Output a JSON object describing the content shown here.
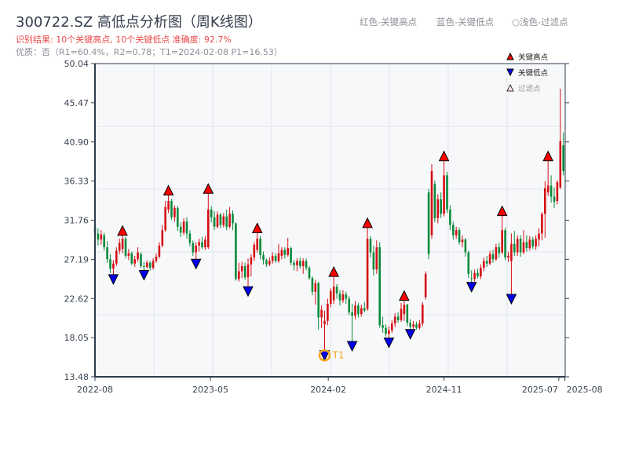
{
  "header": {
    "title": "300722.SZ 高低点分析图（周K线图）",
    "result": "识别结果: 10个关键高点, 10个关键低点   准确度: 92.7%",
    "quality": "优质：否（R1=60.4%，R2=0.78；T1=2024-02-08 P1=16.53）"
  },
  "top_legend": [
    "红色-关键高点",
    "蓝色-关键低点",
    "○浅色-过滤点"
  ],
  "colors": {
    "up": "#d40f14",
    "down": "#0a8a3a",
    "high_marker": "#ff0000",
    "low_marker": "#0000ee",
    "t1": "#f5a623",
    "plot_bg": "#f7f8fa",
    "grid": "#e1e4ea",
    "axis": "#2f3d4f"
  },
  "chart_data": {
    "type": "candlestick",
    "ylim": [
      13.48,
      50.04
    ],
    "y_ticks": [
      "13.48",
      "18.05",
      "22.62",
      "27.19",
      "31.76",
      "36.33",
      "40.90",
      "45.47",
      "50.04"
    ],
    "x_ticks": [
      {
        "label": "2022-08",
        "i": 0
      },
      {
        "label": "2023-05",
        "i": 37.7
      },
      {
        "label": "2024-02",
        "i": 76.2
      },
      {
        "label": "2024-11",
        "i": 114
      },
      {
        "label": "2025-07",
        "i": 151.5
      },
      {
        "label": "2025-08",
        "i": 153.5
      }
    ],
    "legend": [
      {
        "label": "关键高点",
        "marker": "red-up-triangle"
      },
      {
        "label": "关键低点",
        "marker": "blue-down-triangle"
      },
      {
        "label": "过滤点",
        "marker": "hollow-up-triangle"
      }
    ],
    "candle_format": [
      "open",
      "close",
      "high",
      "low"
    ],
    "candles": [
      [
        31,
        30.2,
        33.4,
        29.8
      ],
      [
        30.2,
        29.5,
        30.8,
        28.8
      ],
      [
        29.5,
        30.1,
        30.6,
        28.9
      ],
      [
        30,
        28.6,
        30.3,
        28.2
      ],
      [
        28.6,
        27.2,
        29.3,
        26.8
      ],
      [
        27.2,
        26.1,
        27.8,
        25.6
      ],
      [
        26.1,
        26.7,
        27.1,
        25.4
      ],
      [
        26.7,
        28.2,
        28.6,
        26.4
      ],
      [
        28.2,
        29.1,
        29.6,
        27.8
      ],
      [
        28.4,
        29.6,
        30.0,
        27.9
      ],
      [
        29.6,
        27.6,
        29.8,
        27.3
      ],
      [
        27.6,
        27.9,
        28.4,
        27.1
      ],
      [
        27.9,
        26.7,
        28.1,
        26.5
      ],
      [
        26.7,
        27.2,
        27.6,
        26.3
      ],
      [
        27.2,
        28.0,
        28.6,
        26.9
      ],
      [
        27.8,
        26.4,
        28.0,
        26.2
      ],
      [
        26.4,
        26.3,
        26.9,
        25.9
      ],
      [
        26.3,
        26.8,
        27.1,
        26.1
      ],
      [
        26.8,
        26.2,
        27.0,
        25.9
      ],
      [
        26.2,
        27.0,
        27.3,
        26.0
      ],
      [
        27.0,
        27.5,
        27.9,
        26.8
      ],
      [
        27.5,
        28.8,
        29.2,
        27.3
      ],
      [
        28.8,
        30.6,
        31.2,
        28.6
      ],
      [
        30.6,
        33.3,
        34.0,
        30.4
      ],
      [
        33.0,
        34.0,
        34.7,
        32.6
      ],
      [
        34.0,
        32.1,
        34.2,
        31.8
      ],
      [
        32.1,
        33.2,
        33.5,
        31.6
      ],
      [
        33.2,
        31.0,
        33.4,
        30.5
      ],
      [
        31.0,
        30.3,
        31.5,
        29.8
      ],
      [
        30.3,
        31.6,
        32.0,
        30.0
      ],
      [
        31.6,
        30.2,
        32.1,
        29.6
      ],
      [
        30.2,
        29.1,
        30.6,
        28.7
      ],
      [
        29.1,
        28.0,
        29.4,
        27.6
      ],
      [
        28.0,
        28.8,
        29.2,
        27.2
      ],
      [
        28.8,
        29.2,
        29.6,
        28.1
      ],
      [
        29.2,
        28.6,
        29.8,
        28.4
      ],
      [
        28.6,
        29.5,
        29.9,
        28.3
      ],
      [
        28.6,
        33.0,
        34.9,
        28.4
      ],
      [
        33.0,
        32.1,
        33.4,
        31.5
      ],
      [
        32.1,
        31.0,
        32.8,
        30.6
      ],
      [
        31.0,
        32.4,
        32.8,
        30.8
      ],
      [
        32.4,
        31.2,
        32.6,
        30.8
      ],
      [
        31.2,
        32.2,
        32.6,
        30.9
      ],
      [
        32.2,
        31.0,
        33.0,
        30.6
      ],
      [
        31.0,
        32.5,
        33.3,
        30.8
      ],
      [
        32.5,
        31.4,
        32.9,
        30.6
      ],
      [
        31.4,
        24.9,
        31.5,
        24.7
      ],
      [
        24.9,
        25.8,
        26.8,
        24.6
      ],
      [
        25.8,
        26.4,
        26.9,
        25.0
      ],
      [
        26.4,
        25.1,
        26.8,
        24.8
      ],
      [
        25.1,
        26.6,
        27.3,
        24.0
      ],
      [
        26.6,
        27.4,
        27.8,
        25.2
      ],
      [
        27.4,
        28.9,
        29.2,
        27.0
      ],
      [
        28.3,
        29.6,
        30.3,
        28.0
      ],
      [
        29.6,
        27.7,
        29.9,
        27.2
      ],
      [
        27.7,
        27.1,
        28.1,
        26.6
      ],
      [
        27.1,
        26.6,
        27.3,
        26.3
      ],
      [
        26.6,
        27.0,
        27.4,
        26.4
      ],
      [
        27.0,
        27.6,
        28.0,
        26.7
      ],
      [
        27.6,
        27.0,
        27.9,
        26.8
      ],
      [
        27.0,
        27.9,
        29.0,
        26.8
      ],
      [
        27.6,
        28.3,
        28.6,
        27.2
      ],
      [
        28.3,
        27.7,
        28.6,
        27.3
      ],
      [
        27.7,
        28.5,
        29.7,
        27.5
      ],
      [
        28.5,
        26.8,
        28.7,
        26.5
      ],
      [
        26.8,
        26.5,
        27.1,
        25.9
      ],
      [
        26.5,
        27.0,
        27.3,
        25.8
      ],
      [
        27.0,
        26.4,
        27.4,
        26.1
      ],
      [
        26.4,
        27.0,
        27.3,
        25.5
      ],
      [
        27.0,
        26.2,
        27.3,
        25.9
      ],
      [
        26.2,
        25.0,
        26.4,
        24.8
      ],
      [
        25.0,
        23.4,
        25.2,
        23.0
      ],
      [
        23.4,
        24.4,
        24.8,
        21.9
      ],
      [
        24.4,
        20.4,
        24.6,
        19.0
      ],
      [
        20.4,
        21.3,
        21.8,
        19.2
      ],
      [
        19.6,
        20.0,
        21.2,
        16.53
      ],
      [
        20.0,
        22.0,
        22.6,
        19.5
      ],
      [
        22.0,
        23.5,
        23.8,
        21.6
      ],
      [
        22.4,
        24.0,
        25.2,
        22.0
      ],
      [
        24.0,
        23.2,
        24.3,
        22.6
      ],
      [
        23.2,
        22.4,
        23.6,
        21.8
      ],
      [
        22.4,
        23.1,
        23.6,
        22.1
      ],
      [
        23.1,
        22.6,
        23.4,
        22.0
      ],
      [
        22.6,
        21.0,
        22.9,
        20.7
      ],
      [
        21.0,
        20.6,
        22.0,
        17.6
      ],
      [
        20.6,
        21.8,
        22.3,
        20.2
      ],
      [
        21.8,
        20.8,
        22.1,
        20.4
      ],
      [
        20.8,
        21.5,
        21.9,
        20.5
      ],
      [
        21.5,
        21.2,
        22.2,
        21.0
      ],
      [
        21.4,
        29.6,
        30.9,
        21.2
      ],
      [
        29.6,
        28.0,
        29.9,
        27.4
      ],
      [
        28.0,
        26.0,
        28.8,
        25.3
      ],
      [
        26.0,
        28.6,
        29.4,
        25.5
      ],
      [
        28.6,
        19.5,
        29.2,
        19.2
      ],
      [
        19.5,
        19.2,
        20.5,
        18.6
      ],
      [
        19.2,
        18.5,
        19.6,
        18.2
      ],
      [
        18.5,
        18.9,
        19.4,
        18.0
      ],
      [
        18.9,
        19.7,
        20.1,
        18.6
      ],
      [
        19.7,
        20.5,
        20.9,
        19.3
      ],
      [
        20.5,
        20.1,
        21.0,
        19.8
      ],
      [
        20.1,
        21.4,
        22.1,
        19.9
      ],
      [
        20.8,
        21.9,
        22.4,
        20.0
      ],
      [
        21.9,
        19.8,
        22.0,
        19.4
      ],
      [
        19.8,
        19.3,
        20.2,
        19.0
      ],
      [
        19.3,
        19.6,
        20.0,
        19.1
      ],
      [
        19.6,
        19.2,
        19.9,
        19.0
      ],
      [
        19.2,
        19.7,
        20.1,
        19.0
      ],
      [
        19.7,
        21.9,
        22.2,
        19.4
      ],
      [
        22.8,
        25.5,
        25.8,
        22.5
      ],
      [
        35.0,
        27.8,
        35.4,
        27.2
      ],
      [
        30.0,
        37.5,
        38.3,
        29.6
      ],
      [
        36.0,
        32.0,
        36.4,
        31.5
      ],
      [
        32.0,
        34.2,
        34.8,
        31.4
      ],
      [
        34.2,
        32.5,
        35.0,
        32.0
      ],
      [
        32.5,
        37.0,
        38.7,
        32.2
      ],
      [
        37.0,
        33.0,
        37.4,
        32.6
      ],
      [
        33.0,
        31.2,
        33.5,
        30.6
      ],
      [
        31.2,
        30.0,
        31.6,
        29.5
      ],
      [
        30.0,
        30.6,
        31.0,
        29.6
      ],
      [
        30.6,
        29.2,
        30.9,
        28.9
      ],
      [
        29.2,
        29.5,
        30.0,
        28.6
      ],
      [
        29.5,
        28.0,
        29.7,
        27.5
      ],
      [
        28.0,
        25.5,
        28.2,
        25.0
      ],
      [
        25.0,
        24.9,
        25.9,
        24.5
      ],
      [
        24.9,
        25.6,
        26.0,
        24.6
      ],
      [
        25.6,
        25.2,
        26.1,
        25.0
      ],
      [
        25.2,
        26.2,
        26.6,
        24.9
      ],
      [
        26.2,
        27.0,
        27.4,
        25.8
      ],
      [
        27.0,
        26.7,
        27.6,
        26.3
      ],
      [
        26.7,
        27.8,
        28.2,
        26.5
      ],
      [
        27.8,
        27.2,
        28.3,
        26.8
      ],
      [
        27.2,
        28.6,
        29.0,
        27.0
      ],
      [
        28.6,
        27.9,
        29.1,
        27.4
      ],
      [
        28.0,
        30.6,
        32.3,
        27.8
      ],
      [
        30.6,
        27.4,
        30.9,
        27.1
      ],
      [
        27.4,
        27.6,
        28.1,
        26.9
      ],
      [
        27.0,
        29.0,
        30.2,
        23.1
      ],
      [
        29.0,
        28.0,
        30.5,
        27.6
      ],
      [
        28.0,
        29.6,
        30.0,
        27.6
      ],
      [
        29.6,
        28.0,
        30.0,
        27.5
      ],
      [
        28.0,
        29.2,
        30.6,
        27.8
      ],
      [
        29.2,
        28.5,
        30.0,
        28.1
      ],
      [
        28.5,
        29.5,
        29.9,
        28.2
      ],
      [
        29.5,
        28.7,
        29.8,
        28.4
      ],
      [
        28.7,
        29.6,
        30.0,
        28.3
      ],
      [
        29.5,
        30.2,
        30.8,
        28.7
      ],
      [
        30.2,
        32.5,
        32.7,
        29.4
      ],
      [
        32.5,
        35.5,
        36.3,
        29.7
      ],
      [
        35.0,
        35.8,
        38.7,
        34.6
      ],
      [
        35.8,
        34.5,
        37.0,
        33.8
      ],
      [
        34.5,
        33.9,
        35.6,
        33.2
      ],
      [
        34.0,
        36.2,
        36.4,
        33.6
      ],
      [
        35.6,
        41.0,
        47.1,
        35.4
      ],
      [
        40.5,
        37.5,
        42.0,
        37.0
      ]
    ],
    "key_highs": [
      9,
      24,
      37,
      53,
      78,
      89,
      101,
      114,
      133,
      148
    ],
    "key_lows": [
      6,
      16,
      33,
      50,
      75,
      84,
      96,
      103,
      123,
      136
    ],
    "t1": {
      "label": "T1",
      "i": 75,
      "price": 16.53
    }
  }
}
